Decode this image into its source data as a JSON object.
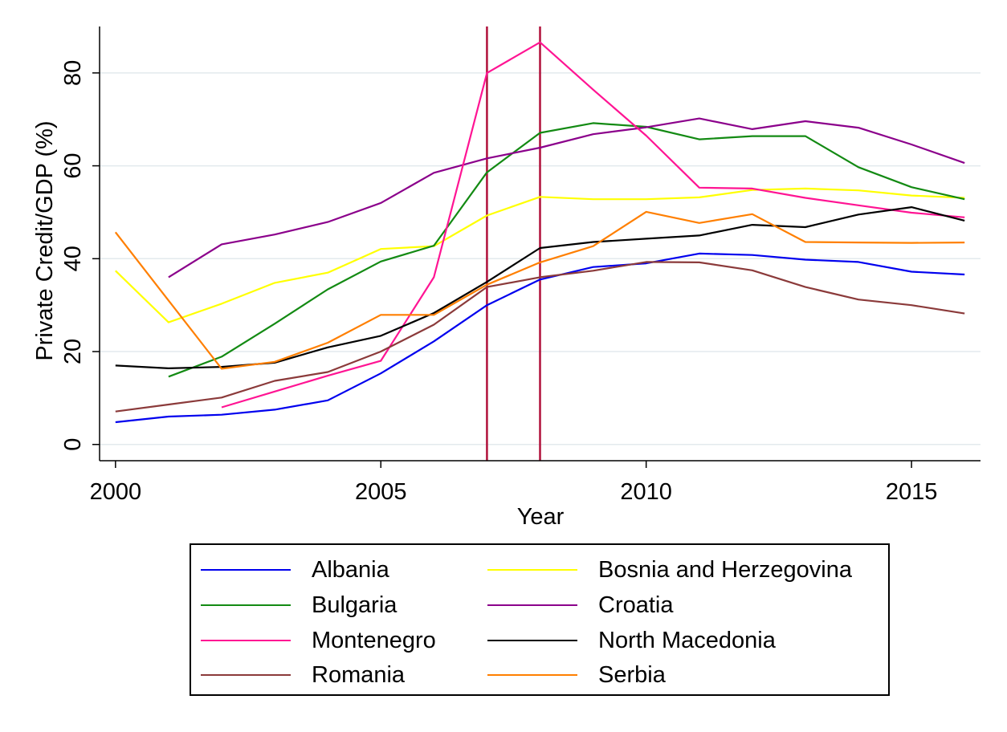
{
  "chart_data": {
    "type": "line",
    "title": "",
    "xlabel": "Year",
    "ylabel": "Private Credit/GDP (%)",
    "xlim": [
      1999.7,
      2016.3
    ],
    "ylim": [
      -3.5,
      90
    ],
    "xticks": [
      2000,
      2005,
      2010,
      2015
    ],
    "yticks": [
      0,
      20,
      40,
      60,
      80
    ],
    "grid": "horizontal",
    "legend_position": "bottom",
    "reference_lines": [
      {
        "axis": "x",
        "value": 2007,
        "color": "#b0103a"
      },
      {
        "axis": "x",
        "value": 2008,
        "color": "#b0103a"
      }
    ],
    "series": [
      {
        "name": "Albania",
        "color": "#0000ee",
        "x": [
          2000,
          2001,
          2002,
          2003,
          2004,
          2005,
          2006,
          2007,
          2008,
          2009,
          2010,
          2011,
          2012,
          2013,
          2014,
          2015,
          2016
        ],
        "values": [
          4.8,
          6.0,
          6.4,
          7.5,
          9.5,
          15.3,
          22.2,
          30.0,
          35.5,
          38.2,
          39.0,
          41.1,
          40.8,
          39.8,
          39.3,
          37.2,
          36.6
        ]
      },
      {
        "name": "Bosnia and Herzegovina",
        "color": "#ffff00",
        "x": [
          2000,
          2001,
          2002,
          2003,
          2004,
          2005,
          2006,
          2007,
          2008,
          2009,
          2010,
          2011,
          2012,
          2013,
          2014,
          2015,
          2016
        ],
        "values": [
          37.4,
          26.3,
          30.3,
          34.8,
          37.0,
          42.1,
          42.7,
          49.3,
          53.3,
          52.8,
          52.8,
          53.2,
          54.8,
          55.1,
          54.7,
          53.6,
          53.1
        ]
      },
      {
        "name": "Bulgaria",
        "color": "#138a13",
        "x": [
          2001,
          2002,
          2003,
          2004,
          2005,
          2006,
          2007,
          2008,
          2009,
          2010,
          2011,
          2012,
          2013,
          2014,
          2015,
          2016
        ],
        "values": [
          14.6,
          18.9,
          26.0,
          33.4,
          39.4,
          42.8,
          58.6,
          67.1,
          69.2,
          68.4,
          65.7,
          66.4,
          66.4,
          59.7,
          55.4,
          52.8
        ]
      },
      {
        "name": "Croatia",
        "color": "#8b008b",
        "x": [
          2001,
          2002,
          2003,
          2004,
          2005,
          2006,
          2007,
          2008,
          2009,
          2010,
          2011,
          2012,
          2013,
          2014,
          2015,
          2016
        ],
        "values": [
          36.0,
          43.1,
          45.2,
          47.9,
          52.0,
          58.5,
          61.6,
          63.9,
          66.8,
          68.3,
          70.2,
          67.9,
          69.6,
          68.2,
          64.6,
          60.6
        ]
      },
      {
        "name": "Montenegro",
        "color": "#ff1493",
        "x": [
          2002,
          2003,
          2004,
          2005,
          2006,
          2007,
          2008,
          2009,
          2010,
          2011,
          2012,
          2013,
          2014,
          2015,
          2016
        ],
        "values": [
          8.0,
          11.4,
          14.8,
          18.0,
          36.0,
          80.0,
          86.6,
          76.4,
          66.5,
          55.3,
          55.1,
          53.1,
          51.5,
          49.9,
          48.9
        ]
      },
      {
        "name": "North Macedonia",
        "color": "#000000",
        "x": [
          2000,
          2001,
          2002,
          2003,
          2004,
          2005,
          2006,
          2007,
          2008,
          2009,
          2010,
          2011,
          2012,
          2013,
          2014,
          2015,
          2016
        ],
        "values": [
          17.0,
          16.4,
          16.7,
          17.6,
          20.9,
          23.4,
          28.3,
          35.0,
          42.3,
          43.6,
          44.3,
          45.0,
          47.3,
          46.8,
          49.5,
          51.1,
          48.2
        ]
      },
      {
        "name": "Romania",
        "color": "#8b3a3a",
        "x": [
          2000,
          2001,
          2002,
          2003,
          2004,
          2005,
          2006,
          2007,
          2008,
          2009,
          2010,
          2011,
          2012,
          2013,
          2014,
          2015,
          2016
        ],
        "values": [
          7.1,
          8.6,
          10.1,
          13.7,
          15.6,
          20.0,
          25.8,
          33.9,
          36.0,
          37.4,
          39.3,
          39.2,
          37.5,
          33.9,
          31.2,
          30.0,
          28.2
        ]
      },
      {
        "name": "Serbia",
        "color": "#ff7f00",
        "x": [
          2000,
          2001,
          2002,
          2003,
          2004,
          2005,
          2006,
          2007,
          2008,
          2009,
          2010,
          2011,
          2012,
          2013,
          2014,
          2015,
          2016
        ],
        "values": [
          45.7,
          31.0,
          16.3,
          17.8,
          21.9,
          27.9,
          27.9,
          34.4,
          39.2,
          42.7,
          50.1,
          47.7,
          49.6,
          43.6,
          43.5,
          43.4,
          43.5
        ]
      }
    ]
  },
  "legend": {
    "items": [
      {
        "label": "Albania",
        "color": "#0000ee"
      },
      {
        "label": "Bosnia and Herzegovina",
        "color": "#ffff00"
      },
      {
        "label": "Bulgaria",
        "color": "#138a13"
      },
      {
        "label": "Croatia",
        "color": "#8b008b"
      },
      {
        "label": "Montenegro",
        "color": "#ff1493"
      },
      {
        "label": "North Macedonia",
        "color": "#000000"
      },
      {
        "label": "Romania",
        "color": "#8b3a3a"
      },
      {
        "label": "Serbia",
        "color": "#ff7f00"
      }
    ]
  }
}
